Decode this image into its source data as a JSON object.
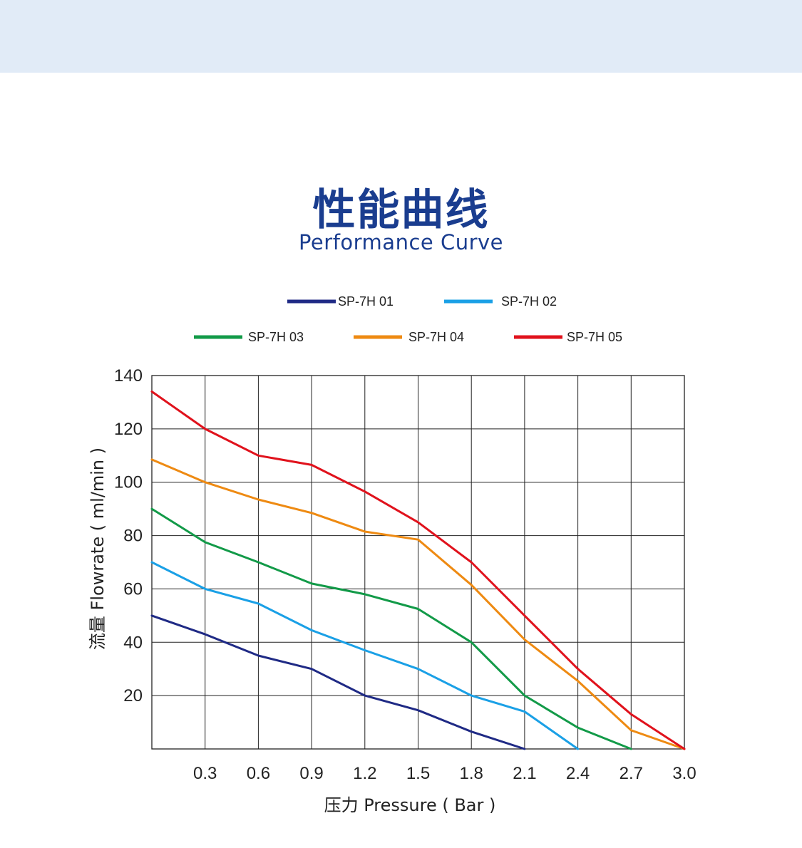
{
  "header": {
    "title_cn": "性能曲线",
    "title_en": "Performance Curve"
  },
  "chart_data": {
    "type": "line",
    "xlabel": "压力 Pressure ( Bar )",
    "ylabel": "流量 Flowrate ( ml/min )",
    "xlim": [
      0,
      3.0
    ],
    "ylim": [
      0,
      140
    ],
    "x_ticks": [
      "0.3",
      "0.6",
      "0.9",
      "1.2",
      "1.5",
      "1.8",
      "2.1",
      "2.4",
      "2.7",
      "3.0"
    ],
    "y_ticks": [
      "20",
      "40",
      "60",
      "80",
      "100",
      "120",
      "140"
    ],
    "grid": true,
    "legend_position": "top",
    "series": [
      {
        "name": "SP-7H 01",
        "color": "#1f2a85",
        "x": [
          0,
          0.3,
          0.6,
          0.9,
          1.2,
          1.5,
          1.8,
          2.1
        ],
        "y": [
          50,
          43,
          35,
          30,
          20,
          14.5,
          6.5,
          0
        ]
      },
      {
        "name": "SP-7H 02",
        "color": "#1aa0e6",
        "x": [
          0,
          0.3,
          0.6,
          0.9,
          1.2,
          1.5,
          1.8,
          2.1,
          2.4
        ],
        "y": [
          70,
          60,
          54.5,
          44.5,
          37,
          30,
          20,
          14,
          0
        ]
      },
      {
        "name": "SP-7H 03",
        "color": "#129a48",
        "x": [
          0,
          0.3,
          0.6,
          0.9,
          1.2,
          1.5,
          1.8,
          2.1,
          2.4,
          2.7
        ],
        "y": [
          90,
          77.5,
          70,
          62,
          58,
          52.5,
          40,
          20,
          8,
          0
        ]
      },
      {
        "name": "SP-7H 04",
        "color": "#ee8a12",
        "x": [
          0,
          0.3,
          0.6,
          0.9,
          1.2,
          1.5,
          1.8,
          2.1,
          2.4,
          2.7,
          3.0
        ],
        "y": [
          108.5,
          100,
          93.5,
          88.5,
          81.5,
          78.5,
          61.5,
          41,
          25.5,
          7,
          0
        ]
      },
      {
        "name": "SP-7H 05",
        "color": "#e0121c",
        "x": [
          0,
          0.3,
          0.6,
          0.9,
          1.2,
          1.5,
          1.8,
          2.1,
          2.4,
          2.7,
          3.0
        ],
        "y": [
          134,
          120,
          110,
          106.5,
          96.5,
          85,
          70,
          50,
          30,
          13,
          0
        ]
      }
    ]
  }
}
